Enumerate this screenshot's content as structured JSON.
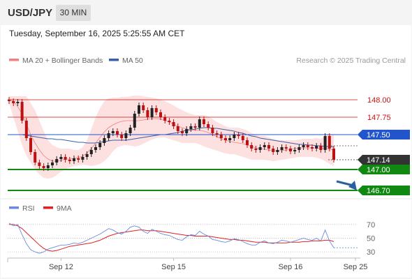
{
  "header": {
    "symbol": "USD/JPY",
    "timeframe": "30 MIN",
    "datetime": "Tuesday, September 16, 2025 5:25:55 AM CET"
  },
  "colors": {
    "bollinger": "#f08080",
    "bollinger_fill": "#fde0e0",
    "ma50": "#3a5fa8",
    "resistance": "#cc1111",
    "pivot": "#2255cc",
    "support": "#118811",
    "current": "#333333",
    "arrow": "#2a5fa0",
    "candle_up": "#222222",
    "candle_down": "#bb1111",
    "rsi": "#6a8ae0",
    "rsi_ma": "#dd2222"
  },
  "chart_data": [
    {
      "type": "candlestick",
      "legend": [
        {
          "label": "MA 20 + Bollinger Bands",
          "color": "#f08080"
        },
        {
          "label": "MA 50",
          "color": "#3a5fa8"
        }
      ],
      "credit": "Research © 2025 Trading Central",
      "ylim": [
        146.6,
        148.25
      ],
      "levels": [
        {
          "value": 148.0,
          "label": "148.00",
          "kind": "resistance"
        },
        {
          "value": 147.75,
          "label": "147.75",
          "kind": "resistance"
        },
        {
          "value": 147.5,
          "label": "147.50",
          "kind": "pivot"
        },
        {
          "value": 147.14,
          "label": "147.14",
          "kind": "current"
        },
        {
          "value": 147.0,
          "label": "147.00",
          "kind": "support"
        },
        {
          "value": 146.7,
          "label": "146.70",
          "kind": "support"
        }
      ],
      "price": [
        147.98,
        147.95,
        147.97,
        147.7,
        147.45,
        147.25,
        147.1,
        147.05,
        147.02,
        147.06,
        147.1,
        147.15,
        147.18,
        147.14,
        147.12,
        147.16,
        147.14,
        147.18,
        147.22,
        147.28,
        147.32,
        147.38,
        147.45,
        147.52,
        147.55,
        147.5,
        147.45,
        147.52,
        147.6,
        147.8,
        147.92,
        147.85,
        147.75,
        147.88,
        147.82,
        147.75,
        147.7,
        147.68,
        147.62,
        147.55,
        147.52,
        147.58,
        147.62,
        147.6,
        147.72,
        147.65,
        147.6,
        147.52,
        147.5,
        147.45,
        147.42,
        147.45,
        147.5,
        147.48,
        147.42,
        147.35,
        147.3,
        147.28,
        147.32,
        147.35,
        147.3,
        147.25,
        147.28,
        147.32,
        147.3,
        147.26,
        147.28,
        147.32,
        147.35,
        147.32,
        147.3,
        147.34,
        147.28,
        147.48,
        147.3,
        147.14
      ],
      "bb_upper": [
        148.05,
        148.05,
        148.05,
        148.05,
        148.05,
        147.95,
        147.85,
        147.7,
        147.55,
        147.42,
        147.35,
        147.32,
        147.3,
        147.3,
        147.3,
        147.28,
        147.28,
        147.32,
        147.42,
        147.58,
        147.75,
        147.88,
        147.98,
        148.02,
        148.03,
        148.03,
        148.04,
        148.04,
        148.05,
        148.06,
        148.06,
        148.05,
        148.04,
        148.03,
        148.02,
        148.0,
        147.98,
        147.95,
        147.92,
        147.88,
        147.85,
        147.82,
        147.8,
        147.78,
        147.78,
        147.78,
        147.76,
        147.72,
        147.68,
        147.65,
        147.62,
        147.6,
        147.6,
        147.6,
        147.58,
        147.56,
        147.52,
        147.5,
        147.48,
        147.48,
        147.46,
        147.44,
        147.42,
        147.42,
        147.42,
        147.42,
        147.42,
        147.43,
        147.44,
        147.44,
        147.44,
        147.45,
        147.44,
        147.48,
        147.5,
        147.5
      ],
      "bb_lower": [
        147.95,
        147.75,
        147.55,
        147.35,
        147.2,
        147.1,
        147.0,
        146.93,
        146.88,
        146.87,
        146.88,
        146.92,
        146.97,
        147.0,
        147.03,
        147.05,
        147.06,
        147.07,
        147.06,
        147.05,
        147.06,
        147.08,
        147.12,
        147.18,
        147.26,
        147.32,
        147.34,
        147.35,
        147.34,
        147.33,
        147.34,
        147.37,
        147.4,
        147.43,
        147.45,
        147.46,
        147.46,
        147.44,
        147.42,
        147.4,
        147.38,
        147.38,
        147.38,
        147.38,
        147.36,
        147.33,
        147.31,
        147.29,
        147.27,
        147.25,
        147.23,
        147.22,
        147.22,
        147.2,
        147.18,
        147.16,
        147.14,
        147.14,
        147.14,
        147.14,
        147.13,
        147.12,
        147.13,
        147.14,
        147.15,
        147.16,
        147.17,
        147.18,
        147.18,
        147.18,
        147.18,
        147.17,
        147.15,
        147.12,
        147.08,
        147.05
      ],
      "ma20": [
        148.0,
        147.98,
        147.9,
        147.8,
        147.65,
        147.5,
        147.38,
        147.28,
        147.2,
        147.15,
        147.12,
        147.12,
        147.13,
        147.15,
        147.15,
        147.16,
        147.17,
        147.19,
        147.24,
        147.3,
        147.38,
        147.46,
        147.54,
        147.6,
        147.64,
        147.67,
        147.69,
        147.7,
        147.7,
        147.7,
        147.7,
        147.71,
        147.72,
        147.73,
        147.73,
        147.72,
        147.7,
        147.68,
        147.65,
        147.62,
        147.6,
        147.58,
        147.57,
        147.56,
        147.56,
        147.55,
        147.53,
        147.5,
        147.47,
        147.44,
        147.42,
        147.4,
        147.39,
        147.38,
        147.37,
        147.35,
        147.33,
        147.31,
        147.3,
        147.29,
        147.28,
        147.27,
        147.27,
        147.27,
        147.28,
        147.29,
        147.3,
        147.31,
        147.31,
        147.31,
        147.31,
        147.31,
        147.3,
        147.31,
        147.29,
        147.28
      ],
      "ma50": [
        147.5,
        147.5,
        147.5,
        147.5,
        147.49,
        147.48,
        147.47,
        147.46,
        147.45,
        147.44,
        147.44,
        147.43,
        147.43,
        147.42,
        147.41,
        147.4,
        147.39,
        147.39,
        147.38,
        147.38,
        147.38,
        147.39,
        147.4,
        147.41,
        147.42,
        147.42,
        147.42,
        147.42,
        147.43,
        147.44,
        147.45,
        147.46,
        147.47,
        147.48,
        147.49,
        147.5,
        147.5,
        147.51,
        147.52,
        147.53,
        147.55,
        147.56,
        147.57,
        147.58,
        147.59,
        147.6,
        147.6,
        147.59,
        147.59,
        147.58,
        147.57,
        147.56,
        147.55,
        147.53,
        147.52,
        147.5,
        147.48,
        147.47,
        147.45,
        147.44,
        147.43,
        147.42,
        147.41,
        147.4,
        147.39,
        147.38,
        147.37,
        147.36,
        147.36,
        147.35,
        147.35,
        147.34,
        147.34,
        147.33,
        147.33,
        147.32
      ],
      "projection": {
        "from": 147.05,
        "to": 146.7
      }
    },
    {
      "type": "line",
      "legend": [
        {
          "label": "RSI",
          "color": "#6a8ae0"
        },
        {
          "label": "9MA",
          "color": "#dd2222"
        }
      ],
      "ylim": [
        25,
        80
      ],
      "ticks": [
        "70",
        "50",
        "30"
      ],
      "tick_values": [
        70,
        50,
        30
      ],
      "rsi": [
        72,
        68,
        70,
        55,
        42,
        33,
        30,
        28,
        30,
        34,
        36,
        38,
        40,
        40,
        41,
        43,
        42,
        44,
        47,
        50,
        53,
        56,
        60,
        64,
        62,
        58,
        56,
        60,
        66,
        68,
        66,
        60,
        57,
        63,
        60,
        57,
        55,
        54,
        51,
        48,
        47,
        52,
        55,
        54,
        60,
        56,
        53,
        48,
        47,
        45,
        44,
        46,
        49,
        48,
        45,
        42,
        40,
        40,
        44,
        46,
        43,
        42,
        44,
        47,
        46,
        44,
        46,
        48,
        50,
        48,
        47,
        50,
        46,
        62,
        46,
        36
      ],
      "rsi_ma": [
        70,
        70,
        68,
        64,
        58,
        52,
        46,
        40,
        35,
        32,
        31,
        32,
        34,
        36,
        38,
        39,
        40,
        41,
        42,
        43,
        45,
        47,
        50,
        53,
        55,
        57,
        58,
        59,
        60,
        61,
        62,
        62,
        61,
        61,
        61,
        60,
        59,
        58,
        57,
        56,
        55,
        54,
        54,
        53,
        53,
        53,
        53,
        52,
        51,
        50,
        49,
        48,
        48,
        47,
        47,
        46,
        45,
        44,
        44,
        44,
        43,
        43,
        43,
        43,
        43,
        44,
        44,
        44,
        45,
        45,
        46,
        46,
        46,
        47,
        47,
        45
      ]
    }
  ],
  "x_axis": {
    "labels": [
      "Sep 12",
      "Sep 15",
      "Sep 16",
      "Sep 25"
    ],
    "label_index": [
      12,
      38,
      65,
      76
    ]
  }
}
